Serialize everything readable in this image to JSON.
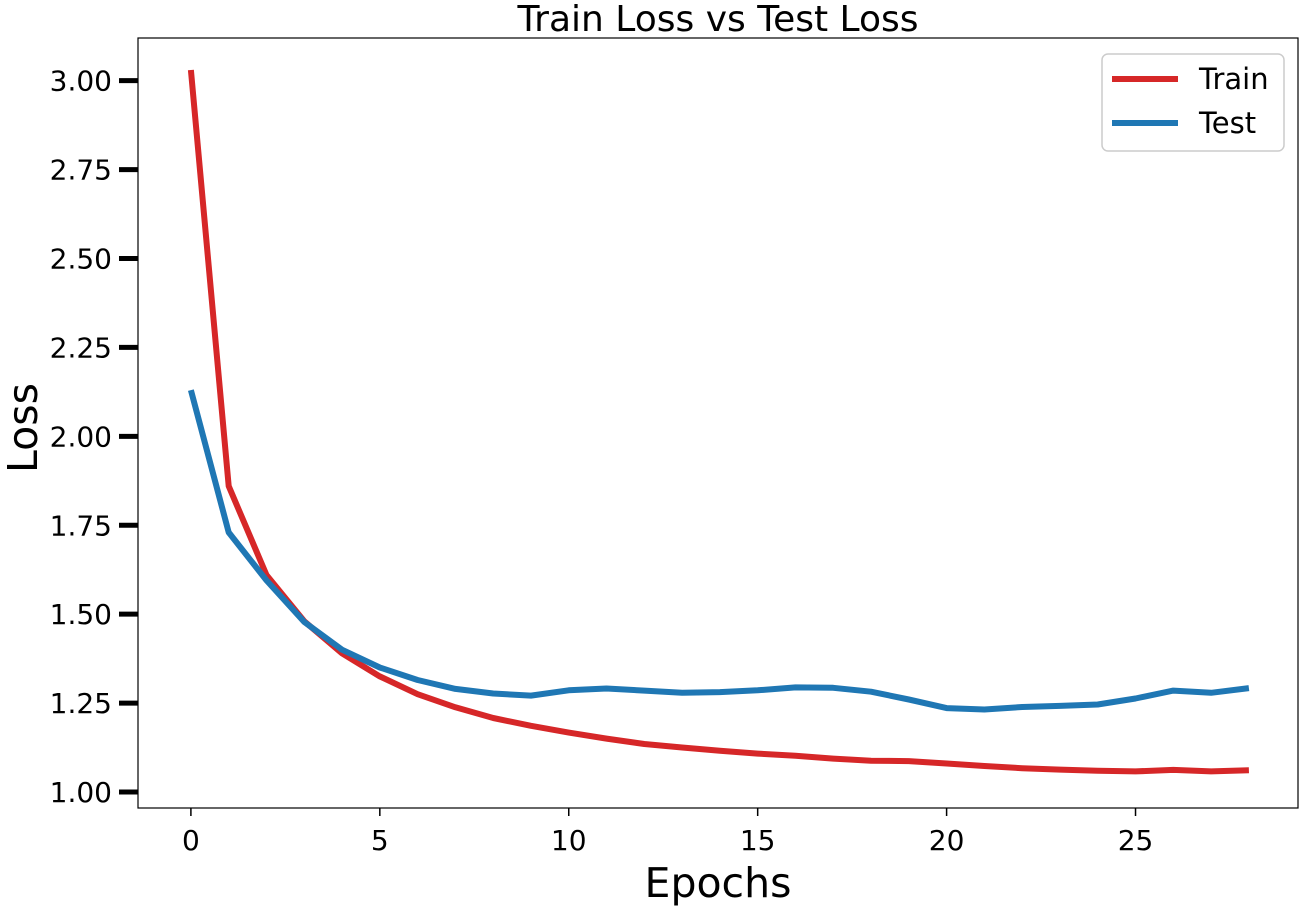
{
  "chart_data": {
    "type": "line",
    "title": "Train Loss vs Test Loss",
    "xlabel": "Epochs",
    "ylabel": "Loss",
    "xlim": [
      -1.4,
      29.3
    ],
    "ylim": [
      0.955,
      3.12
    ],
    "xticks": [
      0,
      5,
      10,
      15,
      20,
      25
    ],
    "xtick_labels": [
      "0",
      "5",
      "10",
      "15",
      "20",
      "25"
    ],
    "yticks": [
      1.0,
      1.25,
      1.5,
      1.75,
      2.0,
      2.25,
      2.5,
      2.75,
      3.0
    ],
    "ytick_labels": [
      "1.00",
      "1.25",
      "1.50",
      "1.75",
      "2.00",
      "2.25",
      "2.50",
      "2.75",
      "3.00"
    ],
    "grid": false,
    "legend_position": "top-right",
    "x": [
      0,
      1,
      2,
      3,
      4,
      5,
      6,
      7,
      8,
      9,
      10,
      11,
      12,
      13,
      14,
      15,
      16,
      17,
      18,
      19,
      20,
      21,
      22,
      23,
      24,
      25,
      26,
      27,
      28
    ],
    "series": [
      {
        "name": "Train",
        "color": "#d62728",
        "values": [
          3.03,
          1.86,
          1.61,
          1.48,
          1.39,
          1.325,
          1.275,
          1.238,
          1.208,
          1.186,
          1.167,
          1.15,
          1.135,
          1.125,
          1.116,
          1.108,
          1.102,
          1.094,
          1.088,
          1.087,
          1.08,
          1.073,
          1.067,
          1.063,
          1.06,
          1.058,
          1.062,
          1.058,
          1.061
        ]
      },
      {
        "name": "Test",
        "color": "#1f77b4",
        "values": [
          2.13,
          1.73,
          1.595,
          1.478,
          1.4,
          1.35,
          1.315,
          1.29,
          1.277,
          1.271,
          1.286,
          1.291,
          1.285,
          1.279,
          1.281,
          1.286,
          1.294,
          1.293,
          1.282,
          1.26,
          1.236,
          1.232,
          1.239,
          1.242,
          1.246,
          1.263,
          1.285,
          1.279,
          1.292
        ]
      }
    ]
  }
}
